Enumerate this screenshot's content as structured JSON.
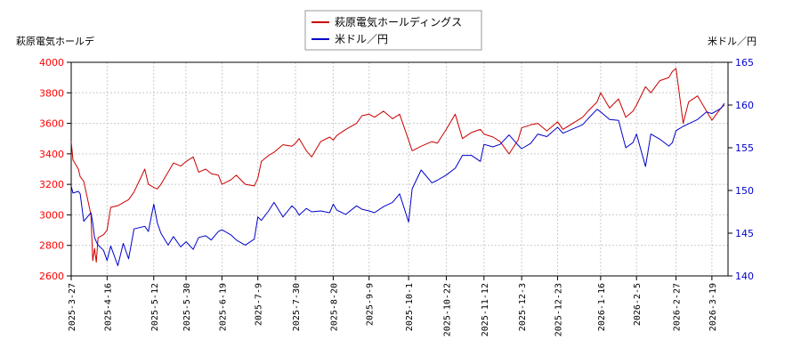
{
  "chart_data": {
    "type": "line",
    "left_axis_label": "萩原電気ホールデ",
    "right_axis_label": "米ドル／円",
    "legend": [
      {
        "name": "萩原電気ホールディングス",
        "color": "#cc0000"
      },
      {
        "name": "米ドル／円",
        "color": "#0000cc"
      }
    ],
    "legend_placement": "top-center",
    "grid": true,
    "left_ylim": [
      2600,
      4000
    ],
    "left_ticks": [
      "2600",
      "2800",
      "3000",
      "3200",
      "3400",
      "3600",
      "3800",
      "4000"
    ],
    "right_ylim": [
      140,
      165
    ],
    "right_ticks": [
      "140",
      "145",
      "150",
      "155",
      "160",
      "165"
    ],
    "x_ticks": [
      "2025-3-27",
      "2025-4-16",
      "2025-5-12",
      "2025-5-30",
      "2025-6-19",
      "2025-7-9",
      "2025-7-30",
      "2025-8-20",
      "2025-9-9",
      "2025-10-1",
      "2025-10-22",
      "2025-11-12",
      "2025-12-3",
      "2025-12-23",
      "2026-1-16",
      "2026-2-5",
      "2026-2-27",
      "2026-3-19"
    ],
    "series": [
      {
        "name": "萩原電気ホールディングス",
        "axis": "left",
        "color": "#cc0000",
        "x": [
          "2025-3-27",
          "2025-3-28",
          "2025-3-31",
          "2025-4-1",
          "2025-4-3",
          "2025-4-7",
          "2025-4-8",
          "2025-4-9",
          "2025-4-10",
          "2025-4-11",
          "2025-4-14",
          "2025-4-16",
          "2025-4-18",
          "2025-4-22",
          "2025-4-25",
          "2025-4-28",
          "2025-5-1",
          "2025-5-7",
          "2025-5-9",
          "2025-5-12",
          "2025-5-14",
          "2025-5-16",
          "2025-5-20",
          "2025-5-23",
          "2025-5-27",
          "2025-5-30",
          "2025-6-3",
          "2025-6-6",
          "2025-6-10",
          "2025-6-13",
          "2025-6-17",
          "2025-6-19",
          "2025-6-24",
          "2025-6-27",
          "2025-7-2",
          "2025-7-7",
          "2025-7-9",
          "2025-7-11",
          "2025-7-15",
          "2025-7-18",
          "2025-7-23",
          "2025-7-28",
          "2025-7-30",
          "2025-8-1",
          "2025-8-5",
          "2025-8-8",
          "2025-8-13",
          "2025-8-18",
          "2025-8-20",
          "2025-8-22",
          "2025-8-27",
          "2025-9-2",
          "2025-9-5",
          "2025-9-9",
          "2025-9-12",
          "2025-9-17",
          "2025-9-22",
          "2025-9-26",
          "2025-10-1",
          "2025-10-3",
          "2025-10-8",
          "2025-10-14",
          "2025-10-17",
          "2025-10-22",
          "2025-10-27",
          "2025-10-31",
          "2025-11-5",
          "2025-11-10",
          "2025-11-12",
          "2025-11-17",
          "2025-11-21",
          "2025-11-26",
          "2025-12-1",
          "2025-12-3",
          "2025-12-8",
          "2025-12-12",
          "2025-12-17",
          "2025-12-23",
          "2025-12-26",
          "2026-1-6",
          "2026-1-9",
          "2026-1-14",
          "2026-1-16",
          "2026-1-21",
          "2026-1-26",
          "2026-1-30",
          "2026-2-3",
          "2026-2-5",
          "2026-2-10",
          "2026-2-13",
          "2026-2-18",
          "2026-2-23",
          "2026-2-25",
          "2026-2-27",
          "2026-3-3",
          "2026-3-6",
          "2026-3-11",
          "2026-3-16",
          "2026-3-19",
          "2026-3-24",
          "2026-3-26"
        ],
        "values": [
          3480,
          3360,
          3300,
          3250,
          3220,
          3000,
          2700,
          2780,
          2690,
          2850,
          2870,
          2900,
          3050,
          3060,
          3080,
          3100,
          3150,
          3300,
          3200,
          3180,
          3170,
          3200,
          3280,
          3340,
          3320,
          3350,
          3380,
          3280,
          3300,
          3270,
          3260,
          3200,
          3230,
          3260,
          3200,
          3190,
          3240,
          3350,
          3390,
          3410,
          3460,
          3450,
          3470,
          3500,
          3420,
          3380,
          3480,
          3510,
          3490,
          3520,
          3560,
          3600,
          3650,
          3660,
          3640,
          3680,
          3630,
          3660,
          3490,
          3420,
          3450,
          3480,
          3470,
          3560,
          3660,
          3500,
          3540,
          3560,
          3530,
          3510,
          3480,
          3400,
          3490,
          3570,
          3590,
          3600,
          3550,
          3610,
          3560,
          3640,
          3680,
          3740,
          3800,
          3700,
          3760,
          3640,
          3680,
          3720,
          3840,
          3800,
          3880,
          3900,
          3940,
          3960,
          3600,
          3740,
          3780,
          3680,
          3620,
          3700,
          3720
        ]
      },
      {
        "name": "米ドル／円",
        "axis": "right",
        "color": "#0000cc",
        "x": [
          "2025-3-27",
          "2025-3-28",
          "2025-3-31",
          "2025-4-1",
          "2025-4-3",
          "2025-4-7",
          "2025-4-8",
          "2025-4-9",
          "2025-4-10",
          "2025-4-11",
          "2025-4-14",
          "2025-4-16",
          "2025-4-18",
          "2025-4-22",
          "2025-4-25",
          "2025-4-28",
          "2025-5-1",
          "2025-5-7",
          "2025-5-9",
          "2025-5-12",
          "2025-5-14",
          "2025-5-16",
          "2025-5-20",
          "2025-5-23",
          "2025-5-27",
          "2025-5-30",
          "2025-6-3",
          "2025-6-6",
          "2025-6-10",
          "2025-6-13",
          "2025-6-17",
          "2025-6-19",
          "2025-6-24",
          "2025-6-27",
          "2025-7-2",
          "2025-7-7",
          "2025-7-9",
          "2025-7-11",
          "2025-7-15",
          "2025-7-18",
          "2025-7-23",
          "2025-7-28",
          "2025-7-30",
          "2025-8-1",
          "2025-8-5",
          "2025-8-8",
          "2025-8-13",
          "2025-8-18",
          "2025-8-20",
          "2025-8-22",
          "2025-8-27",
          "2025-9-2",
          "2025-9-5",
          "2025-9-9",
          "2025-9-12",
          "2025-9-17",
          "2025-9-22",
          "2025-9-26",
          "2025-10-1",
          "2025-10-3",
          "2025-10-8",
          "2025-10-14",
          "2025-10-17",
          "2025-10-22",
          "2025-10-27",
          "2025-10-31",
          "2025-11-5",
          "2025-11-10",
          "2025-11-12",
          "2025-11-17",
          "2025-11-21",
          "2025-11-26",
          "2025-12-1",
          "2025-12-3",
          "2025-12-8",
          "2025-12-12",
          "2025-12-17",
          "2025-12-23",
          "2025-12-26",
          "2026-1-6",
          "2026-1-9",
          "2026-1-14",
          "2026-1-16",
          "2026-1-21",
          "2026-1-26",
          "2026-1-30",
          "2026-2-3",
          "2026-2-5",
          "2026-2-10",
          "2026-2-13",
          "2026-2-18",
          "2026-2-23",
          "2026-2-25",
          "2026-2-27",
          "2026-3-3",
          "2026-3-6",
          "2026-3-11",
          "2026-3-16",
          "2026-3-19",
          "2026-3-24",
          "2026-3-26"
        ],
        "values": [
          150.5,
          149.7,
          149.9,
          149.6,
          146.4,
          147.4,
          146.2,
          144.5,
          144.0,
          143.6,
          143.0,
          141.8,
          143.5,
          141.2,
          143.8,
          142.0,
          145.5,
          145.8,
          145.2,
          148.4,
          146.2,
          145.0,
          143.6,
          144.6,
          143.4,
          144.0,
          143.1,
          144.5,
          144.7,
          144.2,
          145.2,
          145.4,
          144.8,
          144.2,
          143.6,
          144.3,
          146.9,
          146.5,
          147.6,
          148.6,
          146.9,
          148.2,
          147.8,
          147.1,
          147.9,
          147.5,
          147.6,
          147.4,
          148.4,
          147.7,
          147.2,
          148.2,
          147.8,
          147.6,
          147.4,
          148.1,
          148.6,
          149.6,
          146.3,
          150.2,
          152.4,
          150.9,
          151.2,
          151.8,
          152.6,
          154.1,
          154.1,
          153.4,
          155.4,
          155.1,
          155.4,
          156.5,
          155.3,
          154.9,
          155.5,
          156.6,
          156.3,
          157.4,
          156.7,
          157.7,
          158.4,
          159.5,
          159.2,
          158.3,
          158.2,
          155.0,
          155.6,
          156.6,
          152.8,
          156.6,
          156.0,
          155.2,
          155.6,
          157.0,
          157.5,
          157.8,
          158.3,
          159.2,
          159.0,
          159.6,
          160.2
        ]
      }
    ]
  }
}
